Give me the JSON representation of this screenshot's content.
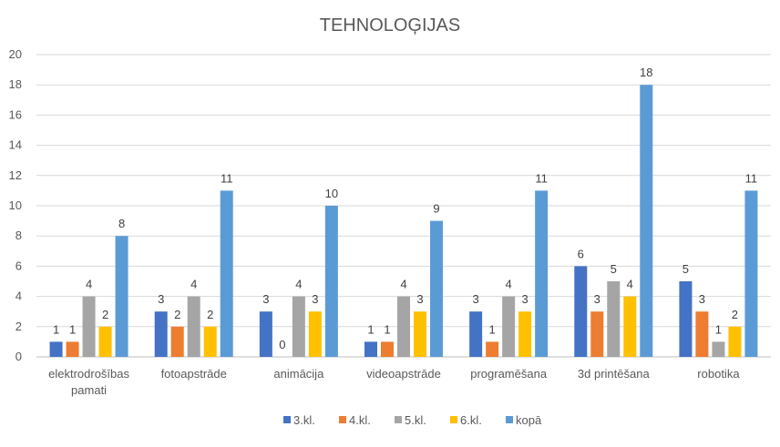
{
  "chart_data": {
    "type": "bar",
    "title": "TEHNOLOĢIJAS",
    "categories": [
      [
        "elektrodrošības",
        "pamati"
      ],
      [
        "fotoapstrāde"
      ],
      [
        "animācija"
      ],
      [
        "videoapstrāde"
      ],
      [
        "programēšana"
      ],
      [
        "3d printēšana"
      ],
      [
        "robotika"
      ]
    ],
    "series": [
      {
        "name": "3.kl.",
        "color": "#4472C4",
        "values": [
          1,
          3,
          3,
          1,
          3,
          6,
          5
        ]
      },
      {
        "name": "4.kl.",
        "color": "#ED7D31",
        "values": [
          1,
          2,
          0,
          1,
          1,
          3,
          3
        ]
      },
      {
        "name": "5.kl.",
        "color": "#A5A5A5",
        "values": [
          4,
          4,
          4,
          4,
          4,
          5,
          1
        ]
      },
      {
        "name": "6.kl.",
        "color": "#FFC000",
        "values": [
          2,
          2,
          3,
          3,
          3,
          4,
          2
        ]
      },
      {
        "name": "kopā",
        "color": "#5B9BD5",
        "values": [
          8,
          11,
          10,
          9,
          11,
          18,
          11
        ]
      }
    ],
    "ylim": [
      0,
      20
    ],
    "yticks": [
      0,
      2,
      4,
      6,
      8,
      10,
      12,
      14,
      16,
      18,
      20
    ],
    "grid": true,
    "legend_position": "bottom",
    "data_labels": true
  }
}
